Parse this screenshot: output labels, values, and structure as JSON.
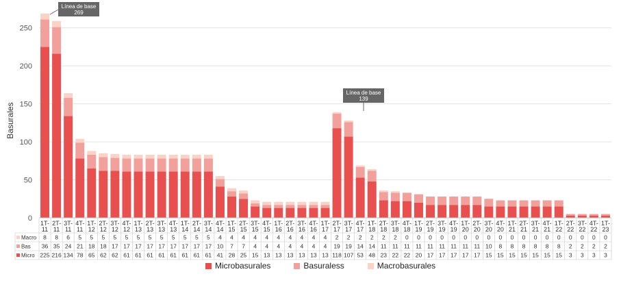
{
  "chart_data": {
    "type": "bar",
    "stacked": true,
    "ylabel": "Basurales",
    "ylim": [
      0,
      270
    ],
    "yticks": [
      0,
      50,
      100,
      150,
      200,
      250
    ],
    "grid": true,
    "categories": [
      [
        "1T-",
        "11"
      ],
      [
        "2T-",
        "11"
      ],
      [
        "3T-",
        "11"
      ],
      [
        "4T-",
        "11"
      ],
      [
        "1T-",
        "12"
      ],
      [
        "2T-",
        "12"
      ],
      [
        "3T-",
        "12"
      ],
      [
        "4T-",
        "12"
      ],
      [
        "1T-",
        "13"
      ],
      [
        "2T-",
        "13"
      ],
      [
        "3T-",
        "13"
      ],
      [
        "4T-",
        "13"
      ],
      [
        "1T-",
        "14"
      ],
      [
        "2T-",
        "14"
      ],
      [
        "3T-",
        "14"
      ],
      [
        "4T-",
        "14"
      ],
      [
        "1T-",
        "15"
      ],
      [
        "2T-",
        "15"
      ],
      [
        "3T-",
        "15"
      ],
      [
        "4T-",
        "15"
      ],
      [
        "1T-",
        "16"
      ],
      [
        "2T-",
        "16"
      ],
      [
        "3T-",
        "16"
      ],
      [
        "4T-",
        "16"
      ],
      [
        "1T-",
        "17"
      ],
      [
        "2T-",
        "17"
      ],
      [
        "3T-",
        "17"
      ],
      [
        "4T-",
        "17"
      ],
      [
        "1T-",
        "18"
      ],
      [
        "2T-",
        "18"
      ],
      [
        "3T-",
        "18"
      ],
      [
        "4T-",
        "18"
      ],
      [
        "1T-",
        "19"
      ],
      [
        "2T-",
        "19"
      ],
      [
        "3T-",
        "19"
      ],
      [
        "4T-",
        "19"
      ],
      [
        "1T-",
        "20"
      ],
      [
        "2T-",
        "20"
      ],
      [
        "3T-",
        "20"
      ],
      [
        "4T-",
        "20"
      ],
      [
        "1T-",
        "21"
      ],
      [
        "2T-",
        "21"
      ],
      [
        "3T-",
        "21"
      ],
      [
        "4T-",
        "21"
      ],
      [
        "1T-",
        "22"
      ],
      [
        "2T-",
        "22"
      ],
      [
        "3T-",
        "22"
      ],
      [
        "4T-",
        "22"
      ],
      [
        "1T-",
        "23"
      ]
    ],
    "series": [
      {
        "name": "Microbasurales",
        "table_label": "Micro",
        "color": "#e8504f",
        "values": [
          225,
          216,
          134,
          78,
          65,
          62,
          62,
          61,
          61,
          61,
          61,
          61,
          61,
          61,
          61,
          41,
          28,
          25,
          15,
          13,
          13,
          13,
          13,
          13,
          13,
          118,
          107,
          53,
          48,
          23,
          22,
          22,
          20,
          17,
          17,
          17,
          17,
          17,
          15,
          15,
          15,
          15,
          15,
          15,
          15,
          3,
          3,
          3,
          3
        ]
      },
      {
        "name": "Basuraless",
        "table_label": "Bas",
        "color": "#f2a09b",
        "values": [
          36,
          35,
          24,
          21,
          18,
          18,
          17,
          17,
          17,
          17,
          17,
          17,
          17,
          17,
          17,
          10,
          7,
          7,
          4,
          4,
          4,
          4,
          4,
          4,
          4,
          19,
          19,
          14,
          14,
          11,
          11,
          11,
          11,
          11,
          11,
          11,
          11,
          11,
          10,
          8,
          8,
          8,
          8,
          8,
          8,
          2,
          2,
          2,
          2
        ]
      },
      {
        "name": "Macrobasurales",
        "table_label": "Macro",
        "color": "#fbd3c6",
        "values": [
          8,
          8,
          6,
          5,
          5,
          5,
          5,
          5,
          5,
          5,
          5,
          5,
          5,
          5,
          5,
          4,
          4,
          4,
          4,
          4,
          4,
          4,
          4,
          4,
          4,
          2,
          2,
          2,
          2,
          2,
          2,
          0,
          0,
          0,
          0,
          0,
          0,
          0,
          0,
          0,
          0,
          0,
          0,
          0,
          0,
          0,
          0,
          0,
          0
        ]
      }
    ],
    "annotations": [
      {
        "label": "Línea de base",
        "value": "269",
        "index": 0
      },
      {
        "label": "Línea de base",
        "value": "139",
        "index": 25
      }
    ],
    "legend": {
      "position": "bottom"
    }
  }
}
